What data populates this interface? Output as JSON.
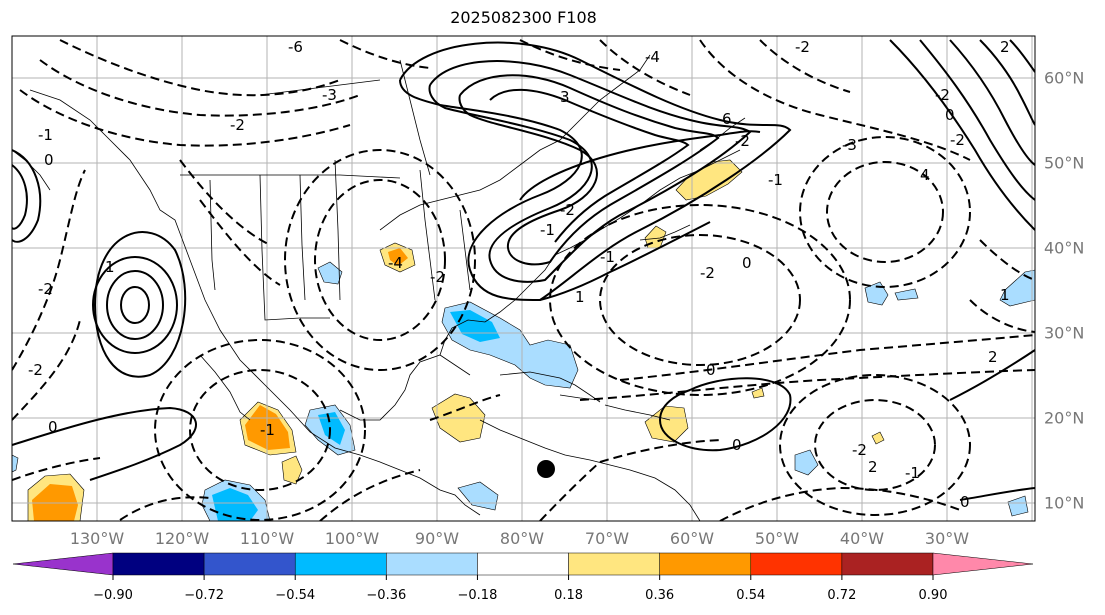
{
  "title": "2025082300 F108",
  "lon_labels": [
    "130°W",
    "120°W",
    "110°W",
    "100°W",
    "90°W",
    "80°W",
    "70°W",
    "60°W",
    "50°W",
    "40°W",
    "30°W"
  ],
  "lat_labels": [
    "60°N",
    "50°N",
    "40°N",
    "30°N",
    "20°N",
    "10°N"
  ],
  "contour_labels": [
    "-6",
    "-3",
    "-2",
    "-1",
    "0",
    "1",
    "-2",
    "3",
    "-4",
    "-2",
    "2",
    "-2",
    "0",
    "-1",
    "-3",
    "-2",
    "6",
    "-2",
    "-1",
    "4",
    "-2",
    "-4",
    "-2",
    "1",
    "-1",
    "0",
    "-2",
    "0",
    "-2",
    "-1",
    "0",
    "0",
    "-2",
    "2",
    "-1",
    "2",
    "1",
    "0"
  ],
  "colorbar": {
    "tick_labels": [
      "−0.90",
      "−0.72",
      "−0.54",
      "−0.36",
      "−0.18",
      "0.18",
      "0.36",
      "0.54",
      "0.72",
      "0.90"
    ],
    "colors": [
      "#9933cc",
      "#000080",
      "#3355cc",
      "#00bbff",
      "#aaddff",
      "#ffffff",
      "#ffe680",
      "#ff9900",
      "#ff3300",
      "#aa2222",
      "#ff88aa"
    ]
  },
  "marker": "black-dot"
}
